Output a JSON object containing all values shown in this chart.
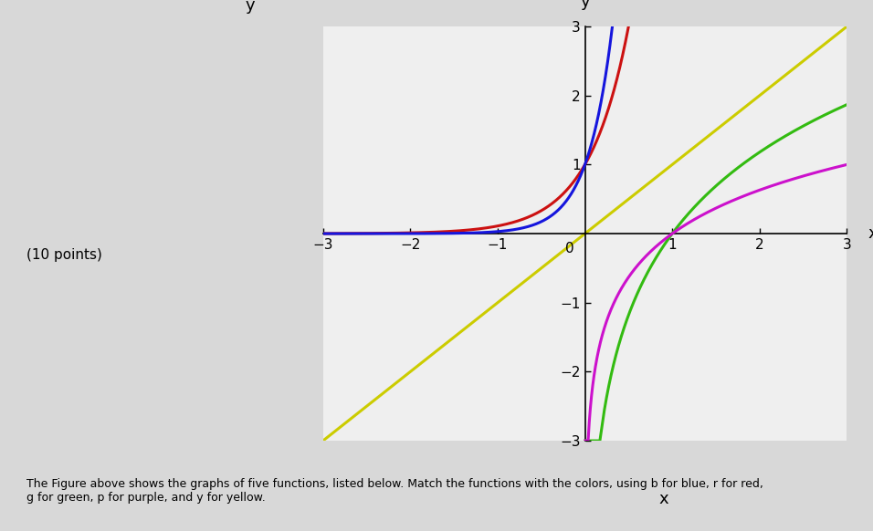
{
  "title": "",
  "xlabel": "x",
  "ylabel": "y",
  "xlim": [
    -3,
    3
  ],
  "ylim": [
    -3,
    3
  ],
  "functions": [
    {
      "color": "#1515dd",
      "label": "blue"
    },
    {
      "color": "#cc1111",
      "label": "red"
    },
    {
      "color": "#cccc00",
      "label": "yellow"
    },
    {
      "color": "#33bb11",
      "label": "green"
    },
    {
      "color": "#cc11cc",
      "label": "purple"
    }
  ],
  "background_color": "#d8d8d8",
  "plot_bg_color": "#efefef",
  "linewidth": 2.2,
  "tick_fontsize": 11,
  "axis_label_fontsize": 13,
  "text_annotation": "(10 points)",
  "bottom_text": "The Figure above shows the graphs of five functions, listed below. Match the functions with the colors, using b for blue, r for red,\ng for green, p for purple, and y for yellow.",
  "blue_exp_k": 3.5,
  "red_exp_k": 2.2,
  "green_log_base": 1.8,
  "purple_log_base": 3.0
}
